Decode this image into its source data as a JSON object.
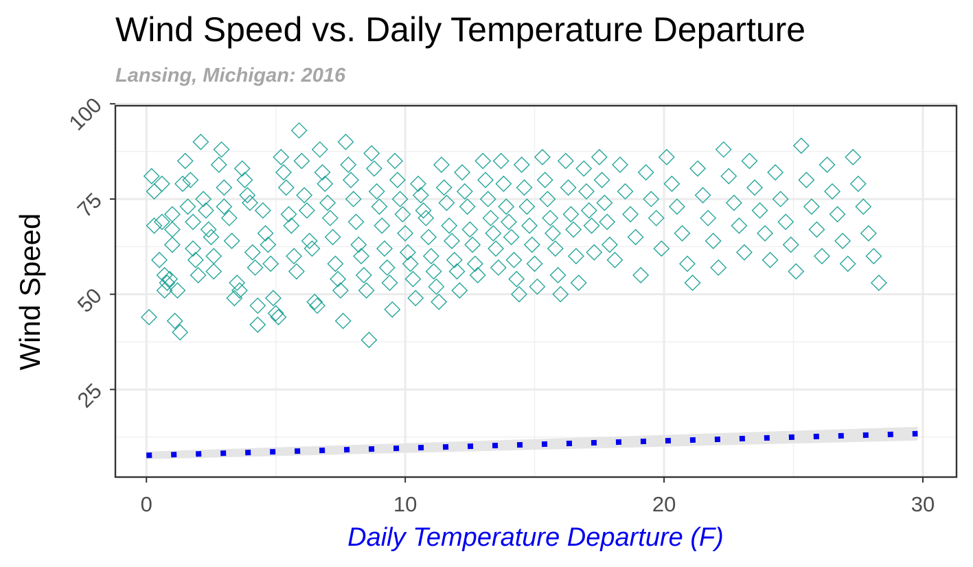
{
  "chart_data": {
    "type": "scatter",
    "title": "Wind Speed vs. Daily Temperature Departure",
    "subtitle": "Lansing, Michigan: 2016",
    "xlabel": "Daily Temperature Departure (F)",
    "ylabel": "Wind Speed",
    "xlim": [
      -1.2,
      31.3
    ],
    "ylim": [
      2,
      99.5
    ],
    "x_ticks": [
      "0",
      "10",
      "20",
      "30"
    ],
    "y_ticks": [
      "25",
      "50",
      "75",
      "100"
    ],
    "grid": true,
    "colors": {
      "points": "#26a69a",
      "trend": "#0000ee",
      "band": "#e5e5e5"
    },
    "trend": {
      "x": [
        0,
        29.8
      ],
      "y": [
        7.7,
        13.4
      ],
      "band": [
        1.0,
        1.8
      ],
      "style": "dotted"
    },
    "points": [
      [
        0.1,
        44
      ],
      [
        0.2,
        81
      ],
      [
        0.3,
        77
      ],
      [
        0.3,
        68
      ],
      [
        0.5,
        59
      ],
      [
        0.6,
        79
      ],
      [
        0.6,
        69
      ],
      [
        0.7,
        51
      ],
      [
        0.7,
        55
      ],
      [
        0.8,
        53
      ],
      [
        0.9,
        54
      ],
      [
        1.0,
        71
      ],
      [
        1.0,
        67
      ],
      [
        1.0,
        63
      ],
      [
        1.1,
        43
      ],
      [
        1.2,
        51
      ],
      [
        1.3,
        40
      ],
      [
        1.4,
        79
      ],
      [
        1.5,
        85
      ],
      [
        1.6,
        73
      ],
      [
        1.7,
        80
      ],
      [
        1.8,
        69
      ],
      [
        1.8,
        62
      ],
      [
        1.9,
        59
      ],
      [
        2.0,
        55
      ],
      [
        2.1,
        90
      ],
      [
        2.2,
        75
      ],
      [
        2.3,
        72
      ],
      [
        2.4,
        67
      ],
      [
        2.5,
        65
      ],
      [
        2.6,
        60
      ],
      [
        2.6,
        56
      ],
      [
        2.8,
        84
      ],
      [
        2.9,
        88
      ],
      [
        3.0,
        78
      ],
      [
        3.0,
        73
      ],
      [
        3.2,
        70
      ],
      [
        3.3,
        64
      ],
      [
        3.4,
        49
      ],
      [
        3.5,
        53
      ],
      [
        3.6,
        51
      ],
      [
        3.7,
        83
      ],
      [
        3.8,
        80
      ],
      [
        3.9,
        76
      ],
      [
        4.0,
        74
      ],
      [
        4.1,
        61
      ],
      [
        4.2,
        57
      ],
      [
        4.3,
        47
      ],
      [
        4.3,
        42
      ],
      [
        4.5,
        72
      ],
      [
        4.6,
        66
      ],
      [
        4.7,
        63
      ],
      [
        4.8,
        58
      ],
      [
        4.9,
        49
      ],
      [
        5.0,
        45
      ],
      [
        5.1,
        44
      ],
      [
        5.2,
        86
      ],
      [
        5.3,
        82
      ],
      [
        5.4,
        78
      ],
      [
        5.5,
        71
      ],
      [
        5.6,
        68
      ],
      [
        5.7,
        60
      ],
      [
        5.8,
        56
      ],
      [
        5.9,
        93
      ],
      [
        6.0,
        85
      ],
      [
        6.1,
        76
      ],
      [
        6.2,
        72
      ],
      [
        6.3,
        64
      ],
      [
        6.4,
        62
      ],
      [
        6.5,
        48
      ],
      [
        6.6,
        47
      ],
      [
        6.7,
        88
      ],
      [
        6.8,
        82
      ],
      [
        6.9,
        79
      ],
      [
        7.0,
        74
      ],
      [
        7.1,
        70
      ],
      [
        7.2,
        65
      ],
      [
        7.3,
        58
      ],
      [
        7.4,
        54
      ],
      [
        7.5,
        51
      ],
      [
        7.6,
        43
      ],
      [
        7.7,
        90
      ],
      [
        7.8,
        84
      ],
      [
        7.9,
        80
      ],
      [
        8.0,
        75
      ],
      [
        8.1,
        69
      ],
      [
        8.2,
        63
      ],
      [
        8.3,
        60
      ],
      [
        8.4,
        55
      ],
      [
        8.5,
        51
      ],
      [
        8.6,
        38
      ],
      [
        8.7,
        87
      ],
      [
        8.8,
        83
      ],
      [
        8.9,
        77
      ],
      [
        9.0,
        73
      ],
      [
        9.1,
        68
      ],
      [
        9.2,
        62
      ],
      [
        9.3,
        57
      ],
      [
        9.4,
        53
      ],
      [
        9.5,
        46
      ],
      [
        9.6,
        85
      ],
      [
        9.7,
        80
      ],
      [
        9.8,
        75
      ],
      [
        9.9,
        71
      ],
      [
        10.0,
        66
      ],
      [
        10.1,
        61
      ],
      [
        10.2,
        58
      ],
      [
        10.3,
        54
      ],
      [
        10.4,
        49
      ],
      [
        10.5,
        79
      ],
      [
        10.6,
        76
      ],
      [
        10.7,
        72
      ],
      [
        10.8,
        70
      ],
      [
        10.9,
        65
      ],
      [
        11.0,
        60
      ],
      [
        11.1,
        56
      ],
      [
        11.2,
        52
      ],
      [
        11.3,
        48
      ],
      [
        11.4,
        84
      ],
      [
        11.5,
        78
      ],
      [
        11.6,
        74
      ],
      [
        11.7,
        68
      ],
      [
        11.8,
        64
      ],
      [
        11.9,
        59
      ],
      [
        12.0,
        56
      ],
      [
        12.1,
        51
      ],
      [
        12.2,
        82
      ],
      [
        12.3,
        77
      ],
      [
        12.4,
        73
      ],
      [
        12.5,
        67
      ],
      [
        12.6,
        63
      ],
      [
        12.7,
        58
      ],
      [
        12.8,
        55
      ],
      [
        13.0,
        85
      ],
      [
        13.1,
        80
      ],
      [
        13.2,
        75
      ],
      [
        13.3,
        70
      ],
      [
        13.4,
        66
      ],
      [
        13.5,
        62
      ],
      [
        13.6,
        57
      ],
      [
        13.7,
        85
      ],
      [
        13.8,
        79
      ],
      [
        13.9,
        73
      ],
      [
        14.0,
        69
      ],
      [
        14.1,
        65
      ],
      [
        14.2,
        59
      ],
      [
        14.3,
        54
      ],
      [
        14.4,
        50
      ],
      [
        14.5,
        84
      ],
      [
        14.6,
        78
      ],
      [
        14.7,
        73
      ],
      [
        14.8,
        68
      ],
      [
        14.9,
        63
      ],
      [
        15.0,
        58
      ],
      [
        15.1,
        52
      ],
      [
        15.3,
        86
      ],
      [
        15.4,
        80
      ],
      [
        15.5,
        75
      ],
      [
        15.6,
        70
      ],
      [
        15.7,
        66
      ],
      [
        15.8,
        62
      ],
      [
        15.9,
        55
      ],
      [
        16.0,
        50
      ],
      [
        16.2,
        85
      ],
      [
        16.3,
        78
      ],
      [
        16.4,
        71
      ],
      [
        16.5,
        67
      ],
      [
        16.6,
        60
      ],
      [
        16.7,
        53
      ],
      [
        16.9,
        83
      ],
      [
        17.0,
        77
      ],
      [
        17.1,
        72
      ],
      [
        17.2,
        68
      ],
      [
        17.3,
        61
      ],
      [
        17.5,
        86
      ],
      [
        17.6,
        80
      ],
      [
        17.7,
        74
      ],
      [
        17.8,
        69
      ],
      [
        17.9,
        63
      ],
      [
        18.1,
        59
      ],
      [
        18.3,
        84
      ],
      [
        18.5,
        77
      ],
      [
        18.7,
        71
      ],
      [
        18.9,
        65
      ],
      [
        19.1,
        55
      ],
      [
        19.3,
        82
      ],
      [
        19.5,
        75
      ],
      [
        19.7,
        70
      ],
      [
        19.9,
        62
      ],
      [
        20.1,
        86
      ],
      [
        20.3,
        79
      ],
      [
        20.5,
        73
      ],
      [
        20.7,
        66
      ],
      [
        20.9,
        58
      ],
      [
        21.1,
        53
      ],
      [
        21.3,
        83
      ],
      [
        21.5,
        76
      ],
      [
        21.7,
        70
      ],
      [
        21.9,
        64
      ],
      [
        22.1,
        57
      ],
      [
        22.3,
        88
      ],
      [
        22.5,
        81
      ],
      [
        22.7,
        74
      ],
      [
        22.9,
        68
      ],
      [
        23.1,
        61
      ],
      [
        23.3,
        85
      ],
      [
        23.5,
        78
      ],
      [
        23.7,
        72
      ],
      [
        23.9,
        66
      ],
      [
        24.1,
        59
      ],
      [
        24.3,
        82
      ],
      [
        24.5,
        75
      ],
      [
        24.7,
        69
      ],
      [
        24.9,
        63
      ],
      [
        25.1,
        56
      ],
      [
        25.3,
        89
      ],
      [
        25.5,
        80
      ],
      [
        25.7,
        73
      ],
      [
        25.9,
        67
      ],
      [
        26.1,
        60
      ],
      [
        26.3,
        84
      ],
      [
        26.5,
        77
      ],
      [
        26.7,
        71
      ],
      [
        26.9,
        64
      ],
      [
        27.1,
        58
      ],
      [
        27.3,
        86
      ],
      [
        27.5,
        79
      ],
      [
        27.7,
        73
      ],
      [
        27.9,
        66
      ],
      [
        28.1,
        60
      ],
      [
        28.3,
        53
      ]
    ]
  }
}
